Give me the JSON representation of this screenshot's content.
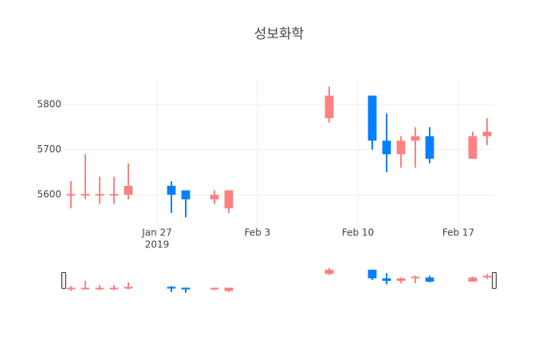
{
  "chart_data": {
    "type": "candlestick",
    "title": "성보화학",
    "x": [
      "2019-01-21",
      "2019-01-22",
      "2019-01-23",
      "2019-01-24",
      "2019-01-25",
      "2019-01-28",
      "2019-01-29",
      "2019-01-31",
      "2019-02-01",
      "2019-02-08",
      "2019-02-11",
      "2019-02-12",
      "2019-02-13",
      "2019-02-14",
      "2019-02-15",
      "2019-02-18",
      "2019-02-19"
    ],
    "open": [
      5600,
      5600,
      5600,
      5600,
      5600,
      5620,
      5610,
      5590,
      5570,
      5770,
      5820,
      5720,
      5690,
      5720,
      5730,
      5680,
      5730
    ],
    "high": [
      5630,
      5690,
      5640,
      5640,
      5670,
      5630,
      5610,
      5610,
      5610,
      5840,
      5820,
      5780,
      5730,
      5750,
      5750,
      5740,
      5770
    ],
    "low": [
      5570,
      5590,
      5580,
      5580,
      5590,
      5560,
      5550,
      5580,
      5560,
      5760,
      5700,
      5650,
      5660,
      5660,
      5670,
      5680,
      5710
    ],
    "close": [
      5600,
      5600,
      5600,
      5600,
      5620,
      5600,
      5590,
      5600,
      5610,
      5820,
      5720,
      5690,
      5720,
      5730,
      5680,
      5730,
      5740
    ],
    "increasing_color": "#ff8080",
    "decreasing_color": "#0080ff",
    "xlim": [
      "2019-01-20T12:00",
      "2019-02-19T12:00"
    ],
    "ylim": [
      5519,
      5855
    ],
    "yticks": [
      5600,
      5700,
      5800
    ],
    "xticks": [
      {
        "value": "2019-01-27",
        "label": "Jan 27",
        "sublabel": "2019"
      },
      {
        "value": "2019-02-03",
        "label": "Feb 3"
      },
      {
        "value": "2019-02-10",
        "label": "Feb 10"
      },
      {
        "value": "2019-02-17",
        "label": "Feb 17"
      }
    ],
    "grid": true,
    "rangeslider": true
  }
}
